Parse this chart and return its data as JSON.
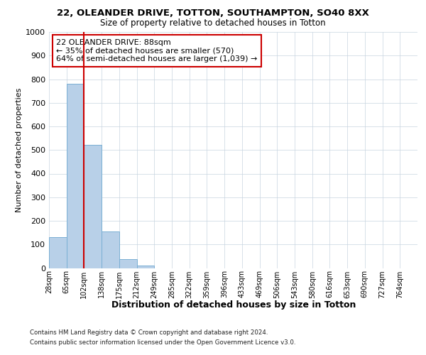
{
  "title1": "22, OLEANDER DRIVE, TOTTON, SOUTHAMPTON, SO40 8XX",
  "title2": "Size of property relative to detached houses in Totton",
  "xlabel": "Distribution of detached houses by size in Totton",
  "ylabel": "Number of detached properties",
  "bin_labels": [
    "28sqm",
    "65sqm",
    "102sqm",
    "138sqm",
    "175sqm",
    "212sqm",
    "249sqm",
    "285sqm",
    "322sqm",
    "359sqm",
    "396sqm",
    "433sqm",
    "469sqm",
    "506sqm",
    "543sqm",
    "580sqm",
    "616sqm",
    "653sqm",
    "690sqm",
    "727sqm",
    "764sqm"
  ],
  "bar_values": [
    130,
    780,
    522,
    155,
    38,
    10,
    0,
    0,
    0,
    0,
    0,
    0,
    0,
    0,
    0,
    0,
    0,
    0,
    0,
    0
  ],
  "bar_color": "#b8d0e8",
  "bar_edge_color": "#7aafd4",
  "property_line_x": 2.0,
  "property_line_color": "#cc0000",
  "annotation_text": "22 OLEANDER DRIVE: 88sqm\n← 35% of detached houses are smaller (570)\n64% of semi-detached houses are larger (1,039) →",
  "annotation_box_color": "#ffffff",
  "annotation_box_edge_color": "#cc0000",
  "ylim": [
    0,
    1000
  ],
  "yticks": [
    0,
    100,
    200,
    300,
    400,
    500,
    600,
    700,
    800,
    900,
    1000
  ],
  "grid_color": "#c8d4e0",
  "background_color": "#ffffff",
  "footer_line1": "Contains HM Land Registry data © Crown copyright and database right 2024.",
  "footer_line2": "Contains public sector information licensed under the Open Government Licence v3.0."
}
